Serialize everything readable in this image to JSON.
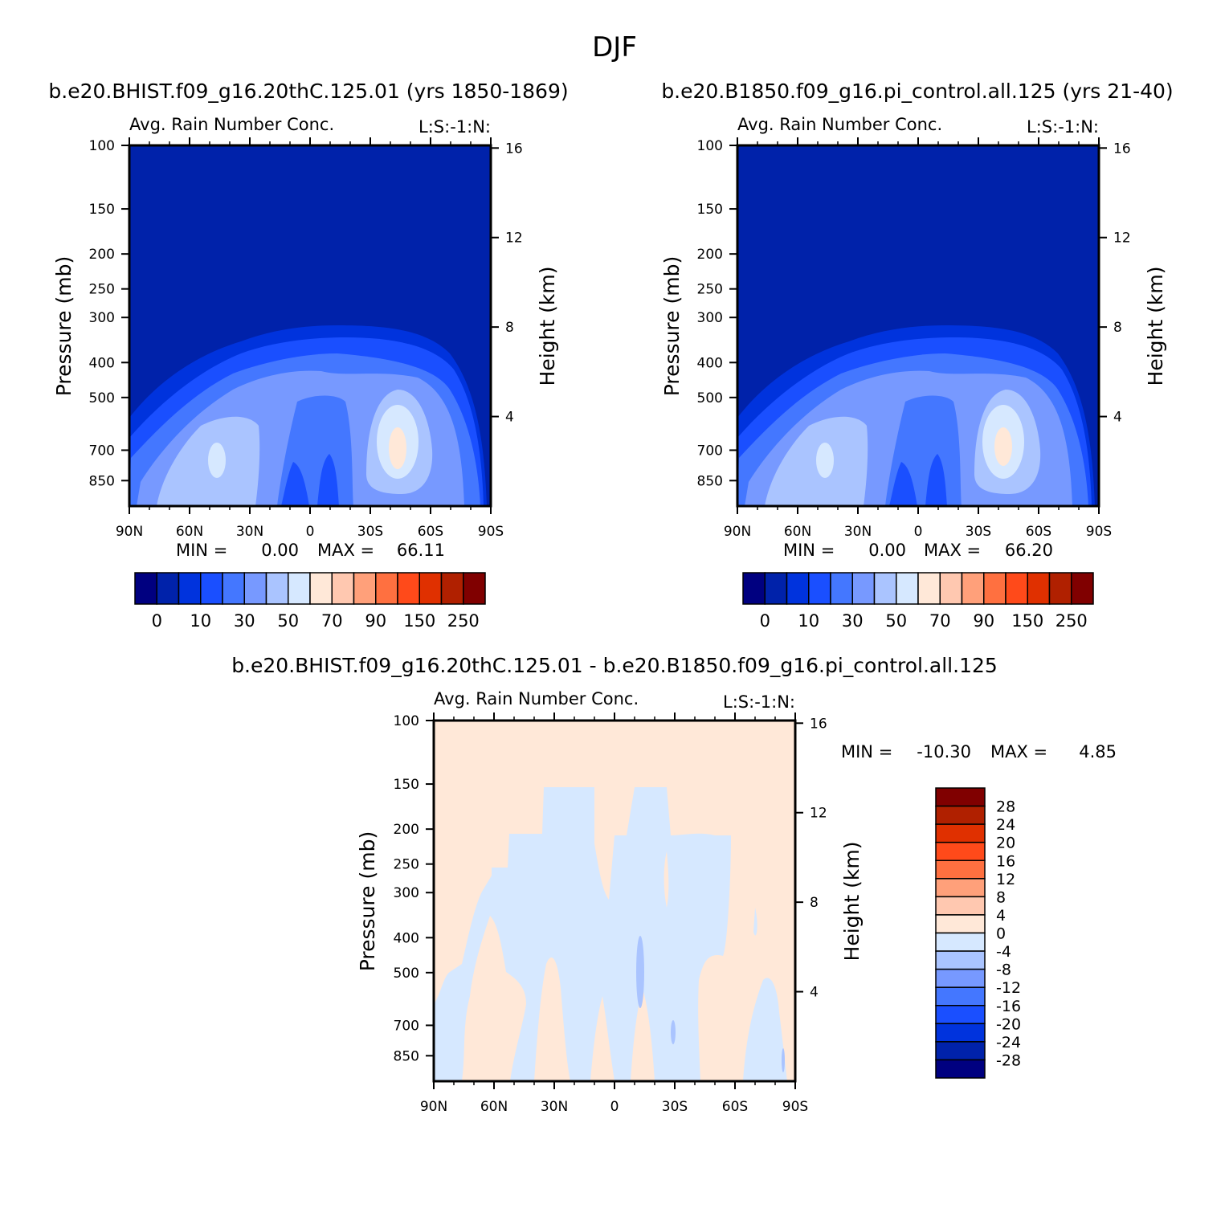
{
  "title": "DJF",
  "panels": [
    {
      "id": "a",
      "header": "b.e20.BHIST.f09_g16.20thC.125.01 (yrs 1850-1869)",
      "subtitle": "Avg. Rain Number Conc.",
      "tag": "L:S:-1:N:",
      "ylabel": "Pressure (mb)",
      "y2label": "Height (km)",
      "stats": {
        "min_label": "MIN =",
        "min": "0.00",
        "max_label": "MAX =",
        "max": "66.11"
      }
    },
    {
      "id": "b",
      "header": "b.e20.B1850.f09_g16.pi_control.all.125 (yrs 21-40)",
      "subtitle": "Avg. Rain Number Conc.",
      "tag": "L:S:-1:N:",
      "ylabel": "Pressure (mb)",
      "y2label": "Height (km)",
      "stats": {
        "min_label": "MIN =",
        "min": "0.00",
        "max_label": "MAX =",
        "max": "66.20"
      }
    },
    {
      "id": "diff",
      "header": "b.e20.BHIST.f09_g16.20thC.125.01 - b.e20.B1850.f09_g16.pi_control.all.125",
      "subtitle": "Avg. Rain Number Conc.",
      "tag": "L:S:-1:N:",
      "ylabel": "Pressure (mb)",
      "y2label": "Height (km)",
      "stats": {
        "min_label": "MIN =",
        "min": "-10.30",
        "max_label": "MAX =",
        "max": "4.85"
      }
    }
  ],
  "chart_data": [
    {
      "type": "heatmap",
      "panel": "a",
      "x_ticks": [
        "90N",
        "60N",
        "30N",
        "0",
        "30S",
        "60S",
        "90S"
      ],
      "y_ticks": [
        100,
        150,
        200,
        250,
        300,
        400,
        500,
        700,
        850
      ],
      "y2_ticks": [
        16,
        12,
        8,
        4
      ],
      "ylim": [
        100,
        1000
      ],
      "colorbar": {
        "labels": [
          "0",
          "10",
          "30",
          "50",
          "70",
          "90",
          "150",
          "250"
        ],
        "colors": [
          "#000080",
          "#0022aa",
          "#0033dd",
          "#1a4fff",
          "#4477ff",
          "#7799ff",
          "#aac4ff",
          "#d6e8ff",
          "#ffe8d8",
          "#ffc8b0",
          "#ffa07a",
          "#ff7040",
          "#ff4a1a",
          "#e03000",
          "#b02000",
          "#800000"
        ]
      }
    },
    {
      "type": "heatmap",
      "panel": "b",
      "x_ticks": [
        "90N",
        "60N",
        "30N",
        "0",
        "30S",
        "60S",
        "90S"
      ],
      "y_ticks": [
        100,
        150,
        200,
        250,
        300,
        400,
        500,
        700,
        850
      ],
      "y2_ticks": [
        16,
        12,
        8,
        4
      ],
      "ylim": [
        100,
        1000
      ],
      "colorbar": {
        "labels": [
          "0",
          "10",
          "30",
          "50",
          "70",
          "90",
          "150",
          "250"
        ],
        "colors": [
          "#000080",
          "#0022aa",
          "#0033dd",
          "#1a4fff",
          "#4477ff",
          "#7799ff",
          "#aac4ff",
          "#d6e8ff",
          "#ffe8d8",
          "#ffc8b0",
          "#ffa07a",
          "#ff7040",
          "#ff4a1a",
          "#e03000",
          "#b02000",
          "#800000"
        ]
      }
    },
    {
      "type": "heatmap",
      "panel": "diff",
      "x_ticks": [
        "90N",
        "60N",
        "30N",
        "0",
        "30S",
        "60S",
        "90S"
      ],
      "y_ticks": [
        100,
        150,
        200,
        250,
        300,
        400,
        500,
        700,
        850
      ],
      "y2_ticks": [
        16,
        12,
        8,
        4
      ],
      "ylim": [
        100,
        1000
      ],
      "colorbar": {
        "labels": [
          "28",
          "24",
          "20",
          "16",
          "12",
          "8",
          "4",
          "0",
          "-4",
          "-8",
          "-12",
          "-16",
          "-20",
          "-24",
          "-28"
        ],
        "colors": [
          "#800000",
          "#b02000",
          "#e03000",
          "#ff4a1a",
          "#ff7040",
          "#ffa07a",
          "#ffc8b0",
          "#ffe8d8",
          "#d6e8ff",
          "#aac4ff",
          "#7799ff",
          "#4477ff",
          "#1a4fff",
          "#0033dd",
          "#0022aa",
          "#000080"
        ]
      }
    }
  ]
}
